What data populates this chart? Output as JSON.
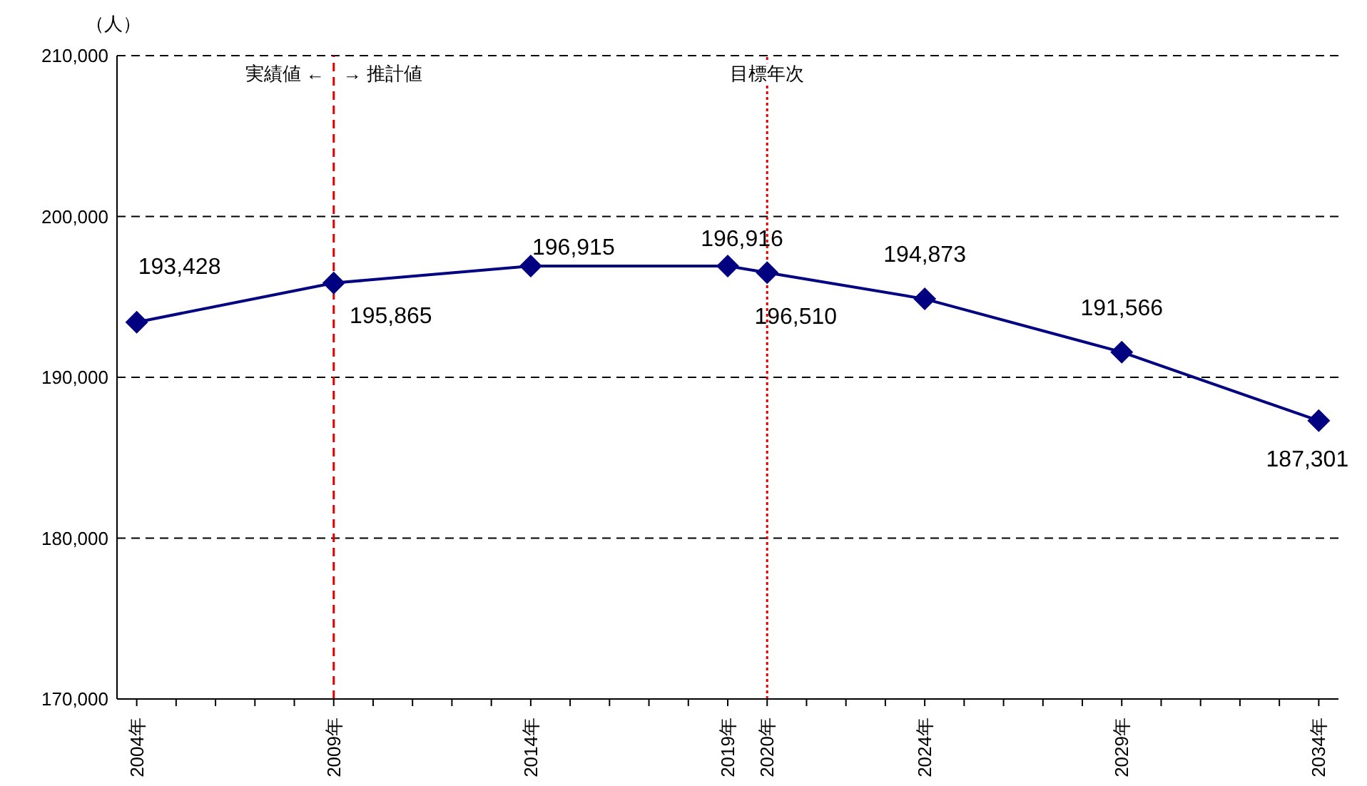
{
  "chart_data": {
    "type": "line",
    "ylabel": "（人）",
    "x": [
      2004,
      2009,
      2014,
      2019,
      2020,
      2024,
      2029,
      2034
    ],
    "series": [
      {
        "color": "#000080",
        "values": [
          193428,
          195865,
          196915,
          196916,
          196510,
          194873,
          191566,
          187301
        ],
        "value_labels": [
          "193,428",
          "195,865",
          "196,915",
          "196,916",
          "196,510",
          "194,873",
          "191,566",
          "187,301"
        ]
      }
    ],
    "xlim": [
      2003.5,
      2034.5
    ],
    "xticks": [
      {
        "value": 2004,
        "label": "2004年"
      },
      {
        "value": 2005,
        "label": null
      },
      {
        "value": 2006,
        "label": null
      },
      {
        "value": 2007,
        "label": null
      },
      {
        "value": 2008,
        "label": null
      },
      {
        "value": 2009,
        "label": "2009年"
      },
      {
        "value": 2010,
        "label": null
      },
      {
        "value": 2011,
        "label": null
      },
      {
        "value": 2012,
        "label": null
      },
      {
        "value": 2013,
        "label": null
      },
      {
        "value": 2014,
        "label": "2014年"
      },
      {
        "value": 2015,
        "label": null
      },
      {
        "value": 2016,
        "label": null
      },
      {
        "value": 2017,
        "label": null
      },
      {
        "value": 2018,
        "label": null
      },
      {
        "value": 2019,
        "label": "2019年"
      },
      {
        "value": 2020,
        "label": "2020年"
      },
      {
        "value": 2021,
        "label": null
      },
      {
        "value": 2022,
        "label": null
      },
      {
        "value": 2023,
        "label": null
      },
      {
        "value": 2024,
        "label": "2024年"
      },
      {
        "value": 2025,
        "label": null
      },
      {
        "value": 2026,
        "label": null
      },
      {
        "value": 2027,
        "label": null
      },
      {
        "value": 2028,
        "label": null
      },
      {
        "value": 2029,
        "label": "2029年"
      },
      {
        "value": 2030,
        "label": null
      },
      {
        "value": 2031,
        "label": null
      },
      {
        "value": 2032,
        "label": null
      },
      {
        "value": 2033,
        "label": null
      },
      {
        "value": 2034,
        "label": "2034年"
      }
    ],
    "ylim": [
      170000,
      210000
    ],
    "yticks": [
      {
        "value": 170000,
        "label": "170,000"
      },
      {
        "value": 180000,
        "label": "180,000"
      },
      {
        "value": 190000,
        "label": "190,000"
      },
      {
        "value": 200000,
        "label": "200,000"
      },
      {
        "value": 210000,
        "label": "210,000"
      }
    ],
    "grid": "y",
    "marker": "diamond",
    "line_style": "solid",
    "ref_lines": [
      {
        "axis": "x",
        "value": 2009,
        "label": "実績値 ←　→ 推計値",
        "color": "#e00000",
        "line_style": "dashed"
      },
      {
        "axis": "x",
        "value": 2020,
        "label": "目標年次",
        "color": "#e00000",
        "line_style": "dotted"
      }
    ]
  }
}
